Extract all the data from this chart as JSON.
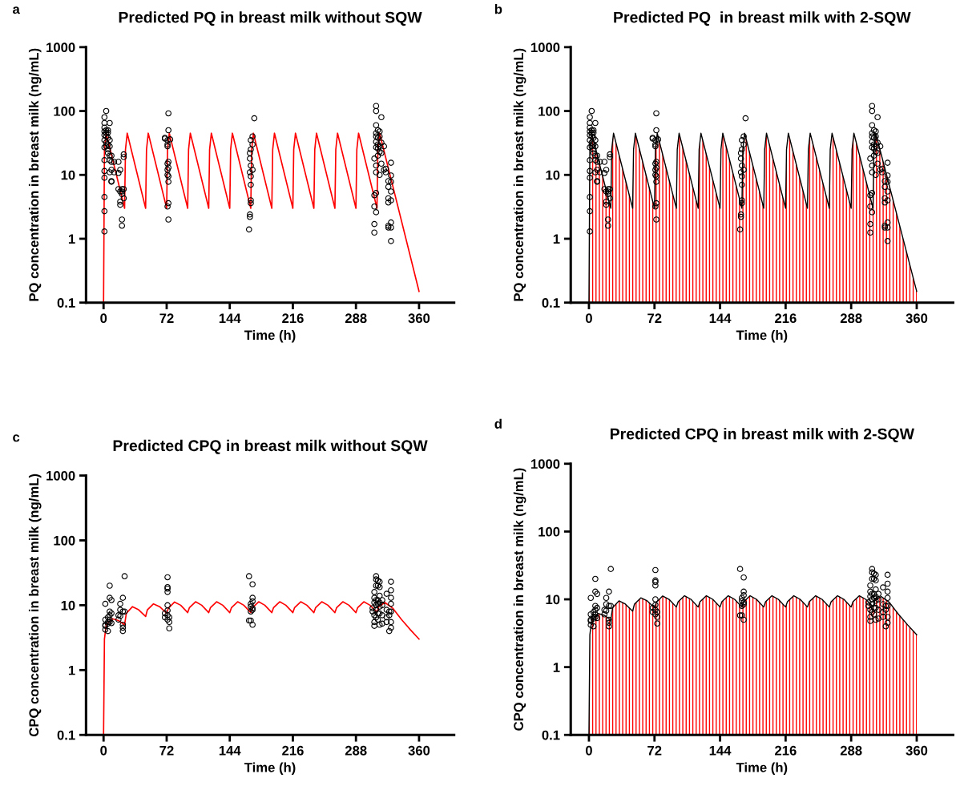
{
  "chart_data": [
    {
      "type": "line",
      "title": "Predicted PQ in breast milk without SQW",
      "annotations": [
        "a"
      ],
      "xlabel": "Time (h)",
      "ylabel": "PQ concentration in breast milk (ng/mL)",
      "log": "y",
      "xlim": [
        -20,
        400
      ],
      "xticks": [
        0,
        72,
        144,
        216,
        288,
        360
      ],
      "ylim": [
        0.1,
        1000
      ],
      "yticks": [
        0.1,
        1,
        10,
        100,
        1000
      ],
      "grid": false,
      "series": [
        {
          "type": "scatter",
          "marker": "circle",
          "color": "#000000",
          "x": [
            1,
            1,
            1,
            1,
            1,
            1,
            1,
            1,
            1,
            1,
            1,
            1,
            1,
            3,
            3,
            3,
            3,
            3,
            3,
            5,
            5,
            5,
            5,
            5,
            5,
            7,
            7,
            7,
            7,
            7,
            7,
            9,
            9,
            9,
            9,
            9,
            12,
            12,
            17,
            17,
            17,
            19,
            19,
            19,
            19,
            21,
            21,
            21,
            21,
            21,
            23,
            23,
            23,
            23,
            70,
            70,
            73,
            73,
            73,
            73,
            73,
            73,
            73,
            74,
            74,
            74,
            74,
            74,
            74,
            74,
            74,
            76,
            166,
            167,
            167,
            167,
            167,
            167,
            168,
            168,
            168,
            168,
            168,
            168,
            168,
            170,
            170,
            170,
            172,
            309,
            309,
            309,
            309,
            309,
            311,
            311,
            311,
            311,
            311,
            311,
            311,
            311,
            311,
            311,
            311,
            313,
            313,
            313,
            313,
            313,
            315,
            315,
            315,
            315,
            315,
            317,
            317,
            317,
            317,
            320,
            320,
            322,
            322,
            325,
            325,
            325,
            325,
            325,
            325,
            328,
            328,
            328,
            328,
            328,
            328,
            328,
            328
          ],
          "values": [
            1.3,
            2.7,
            4.5,
            9,
            11.5,
            17,
            27,
            35,
            42,
            48,
            55,
            65,
            80,
            100,
            50,
            45,
            40,
            32,
            28,
            50,
            46,
            38,
            30,
            25,
            22,
            65,
            35,
            28,
            20,
            17,
            11,
            20,
            16,
            12,
            8,
            7.8,
            16,
            11,
            16,
            10.7,
            6,
            5.5,
            3.8,
            3.4,
            12,
            6,
            5.5,
            5,
            2,
            1.6,
            21,
            19,
            6,
            4.3,
            37,
            38,
            3.2,
            10,
            12,
            15,
            35,
            30,
            28,
            92,
            50,
            16,
            13,
            9.5,
            7.8,
            3.6,
            2,
            36,
            1.4,
            11,
            18,
            22,
            2.2,
            2.4,
            25,
            14,
            9.5,
            7,
            4,
            3.6,
            35,
            40,
            12,
            30,
            77,
            18,
            4.8,
            3.2,
            1.7,
            1.25,
            120,
            100,
            60,
            45,
            40,
            33,
            27,
            14,
            11,
            5.2,
            2.6,
            50,
            38,
            30,
            26,
            20,
            48,
            40,
            28,
            23,
            10,
            80,
            32,
            22,
            15,
            12,
            28,
            12.5,
            11,
            8,
            6.5,
            3.7,
            4.3,
            1.6,
            1.5,
            15.5,
            9.8,
            7.8,
            5.5,
            4,
            1.8,
            0.92,
            1.5
          ]
        },
        {
          "color": "#ff0000",
          "x": [
            0,
            1,
            3,
            24,
            25,
            27,
            48,
            49,
            51,
            72,
            73,
            75,
            96,
            97,
            99,
            120,
            121,
            123,
            144,
            145,
            147,
            168,
            169,
            171,
            192,
            193,
            195,
            216,
            217,
            219,
            240,
            241,
            243,
            264,
            265,
            267,
            288,
            289,
            291,
            312,
            313,
            315,
            360
          ],
          "values": [
            0.1,
            25,
            45,
            3,
            25,
            45,
            3,
            25,
            45,
            3,
            25,
            45,
            3,
            25,
            45,
            3,
            25,
            45,
            3,
            25,
            45,
            3,
            25,
            45,
            3,
            25,
            45,
            3,
            25,
            45,
            3,
            25,
            45,
            3,
            25,
            45,
            3,
            25,
            45,
            3,
            25,
            45,
            0.15
          ]
        }
      ]
    },
    {
      "type": "area",
      "title": "Predicted PQ  in breast milk with 2-SQW",
      "annotations": [
        "b"
      ],
      "xlabel": "Time (h)",
      "ylabel": "PQ concentration in breast milk (ng/mL)",
      "log": "y",
      "xlim": [
        -20,
        400
      ],
      "xticks": [
        0,
        72,
        144,
        216,
        288,
        360
      ],
      "ylim": [
        0.1,
        1000
      ],
      "yticks": [
        0.1,
        1,
        10,
        100,
        1000
      ],
      "grid": false,
      "series": [
        {
          "color": "#ff0000",
          "x": [
            0,
            1,
            3,
            24,
            25,
            27,
            48,
            49,
            51,
            72,
            73,
            75,
            96,
            97,
            99,
            120,
            121,
            123,
            144,
            145,
            147,
            168,
            169,
            171,
            192,
            193,
            195,
            216,
            217,
            219,
            240,
            241,
            243,
            264,
            265,
            267,
            288,
            289,
            291,
            312,
            313,
            315,
            360
          ],
          "values": [
            0.1,
            25,
            45,
            3,
            25,
            45,
            3,
            25,
            45,
            3,
            25,
            45,
            3,
            25,
            45,
            3,
            25,
            45,
            3,
            25,
            45,
            3,
            25,
            45,
            3,
            25,
            45,
            3,
            25,
            45,
            3,
            25,
            45,
            3,
            25,
            45,
            3,
            25,
            45,
            3,
            25,
            45,
            0.15
          ]
        },
        {
          "type": "scatter",
          "marker": "circle",
          "color": "#000000",
          "x": [
            1,
            1,
            1,
            1,
            1,
            1,
            1,
            1,
            1,
            1,
            1,
            1,
            1,
            3,
            3,
            3,
            3,
            3,
            3,
            5,
            5,
            5,
            5,
            5,
            5,
            7,
            7,
            7,
            7,
            7,
            7,
            9,
            9,
            9,
            9,
            9,
            12,
            12,
            17,
            17,
            17,
            19,
            19,
            19,
            19,
            21,
            21,
            21,
            21,
            21,
            23,
            23,
            23,
            23,
            70,
            70,
            73,
            73,
            73,
            73,
            73,
            73,
            73,
            74,
            74,
            74,
            74,
            74,
            74,
            74,
            74,
            76,
            166,
            167,
            167,
            167,
            167,
            167,
            168,
            168,
            168,
            168,
            168,
            168,
            168,
            170,
            170,
            170,
            172,
            309,
            309,
            309,
            309,
            309,
            311,
            311,
            311,
            311,
            311,
            311,
            311,
            311,
            311,
            311,
            311,
            313,
            313,
            313,
            313,
            313,
            315,
            315,
            315,
            315,
            315,
            317,
            317,
            317,
            317,
            320,
            320,
            322,
            322,
            325,
            325,
            325,
            325,
            325,
            325,
            328,
            328,
            328,
            328,
            328,
            328,
            328,
            328
          ],
          "values": [
            1.3,
            2.7,
            4.5,
            9,
            11.5,
            17,
            27,
            35,
            42,
            48,
            55,
            65,
            80,
            100,
            50,
            45,
            40,
            32,
            28,
            50,
            46,
            38,
            30,
            25,
            22,
            65,
            35,
            28,
            20,
            17,
            11,
            20,
            16,
            12,
            8,
            7.8,
            16,
            11,
            16,
            10.7,
            6,
            5.5,
            3.8,
            3.4,
            12,
            6,
            5.5,
            5,
            2,
            1.6,
            21,
            19,
            6,
            4.3,
            37,
            38,
            3.2,
            10,
            12,
            15,
            35,
            30,
            28,
            92,
            50,
            16,
            13,
            9.5,
            7.8,
            3.6,
            2,
            36,
            1.4,
            11,
            18,
            22,
            2.2,
            2.4,
            25,
            14,
            9.5,
            7,
            4,
            3.6,
            35,
            40,
            12,
            30,
            77,
            18,
            4.8,
            3.2,
            1.7,
            1.25,
            120,
            100,
            60,
            45,
            40,
            33,
            27,
            14,
            11,
            5.2,
            2.6,
            50,
            38,
            30,
            26,
            20,
            48,
            40,
            28,
            23,
            10,
            80,
            32,
            22,
            15,
            12,
            28,
            12.5,
            11,
            8,
            6.5,
            3.7,
            4.3,
            1.6,
            1.5,
            15.5,
            9.8,
            7.8,
            5.5,
            4,
            1.8,
            0.92,
            1.5
          ]
        }
      ]
    },
    {
      "type": "line",
      "title": "Predicted CPQ in breast milk without SQW",
      "annotations": [
        "c"
      ],
      "xlabel": "Time (h)",
      "ylabel": "CPQ concentration in breast milk (ng/mL)",
      "log": "y",
      "xlim": [
        -20,
        400
      ],
      "xticks": [
        0,
        72,
        144,
        216,
        288,
        360
      ],
      "ylim": [
        0.1,
        1000
      ],
      "yticks": [
        0.1,
        1,
        10,
        100,
        1000
      ],
      "grid": false,
      "series": [
        {
          "type": "scatter",
          "marker": "circle",
          "color": "#000000",
          "x": [
            2,
            2,
            2,
            2,
            2,
            5,
            5,
            5,
            5,
            7,
            7,
            7,
            7,
            7,
            7,
            9,
            9,
            9,
            17,
            17,
            19,
            19,
            19,
            22,
            22,
            22,
            22,
            22,
            24,
            24,
            70,
            70,
            73,
            73,
            73,
            73,
            73,
            73,
            73,
            73,
            75,
            75,
            75,
            166,
            166,
            168,
            168,
            168,
            168,
            170,
            170,
            170,
            170,
            170,
            170,
            307,
            307,
            309,
            309,
            309,
            309,
            309,
            309,
            311,
            311,
            311,
            311,
            311,
            311,
            311,
            313,
            313,
            313,
            313,
            313,
            313,
            315,
            315,
            315,
            315,
            315,
            315,
            315,
            318,
            318,
            318,
            318,
            323,
            323,
            323,
            323,
            326,
            326,
            326,
            328,
            328,
            328,
            328,
            328,
            328,
            328
          ],
          "values": [
            10.5,
            6,
            5,
            4.8,
            4.2,
            6.5,
            5.5,
            4,
            5.2,
            20,
            13,
            8,
            7,
            6,
            5.5,
            12,
            7.5,
            5.3,
            7,
            6,
            10.5,
            8.5,
            6.8,
            13,
            8,
            5,
            4.5,
            4,
            28,
            8,
            7.5,
            6.5,
            27,
            19,
            18,
            16,
            10,
            8.3,
            7,
            6,
            6.5,
            5.5,
            4.4,
            5.8,
            28,
            9.5,
            10.5,
            8,
            5.8,
            21,
            13,
            11.5,
            9,
            5,
            8.5,
            8,
            9,
            16,
            13,
            11,
            7,
            5.5,
            4.8,
            28,
            25,
            20,
            12,
            10,
            8.5,
            6.5,
            24,
            20,
            12,
            10.5,
            7.5,
            6,
            23,
            19,
            14,
            11,
            9.5,
            7.5,
            5,
            12,
            10,
            7,
            5.2,
            15,
            8.5,
            6.5,
            5.5,
            8,
            7,
            4,
            23,
            17,
            13,
            10.5,
            8,
            5.5,
            4.5
          ]
        },
        {
          "color": "#ff0000",
          "x": [
            0,
            1,
            3,
            10,
            17,
            24,
            26,
            33,
            40,
            48,
            50,
            57,
            64,
            72,
            74,
            81,
            88,
            96,
            98,
            105,
            112,
            120,
            122,
            129,
            136,
            144,
            146,
            153,
            160,
            168,
            170,
            177,
            184,
            192,
            194,
            201,
            208,
            216,
            218,
            225,
            232,
            240,
            242,
            249,
            256,
            264,
            266,
            273,
            280,
            288,
            290,
            297,
            304,
            312,
            314,
            321,
            330,
            340,
            350,
            360
          ],
          "values": [
            0.1,
            3,
            5,
            6.2,
            5.8,
            5,
            7.5,
            9.5,
            8.5,
            6.7,
            8.5,
            10.5,
            9.5,
            7.5,
            9,
            11.2,
            10,
            7.7,
            9.2,
            11.3,
            10,
            7.7,
            9.2,
            11.3,
            10,
            7.7,
            9.2,
            11.3,
            10,
            7.7,
            9.2,
            11.3,
            10,
            7.7,
            9.2,
            11.3,
            10,
            7.7,
            9.2,
            11.3,
            10,
            7.7,
            9.2,
            11.3,
            10,
            7.7,
            9.2,
            11.3,
            10,
            7.7,
            9.2,
            11.3,
            10,
            7.8,
            9.5,
            11,
            9,
            6,
            4.2,
            3
          ]
        }
      ]
    },
    {
      "type": "area",
      "title": "Predicted CPQ in breast milk with 2-SQW",
      "annotations": [
        "d"
      ],
      "xlabel": "Time (h)",
      "ylabel": "CPQ concentration in breast milk (ng/mL)",
      "log": "y",
      "xlim": [
        -20,
        400
      ],
      "xticks": [
        0,
        72,
        144,
        216,
        288,
        360
      ],
      "ylim": [
        0.1,
        1000
      ],
      "yticks": [
        0.1,
        1,
        10,
        100,
        1000
      ],
      "grid": false,
      "series": [
        {
          "color": "#ff0000",
          "x": [
            0,
            1,
            3,
            10,
            17,
            24,
            26,
            33,
            40,
            48,
            50,
            57,
            64,
            72,
            74,
            81,
            88,
            96,
            98,
            105,
            112,
            120,
            122,
            129,
            136,
            144,
            146,
            153,
            160,
            168,
            170,
            177,
            184,
            192,
            194,
            201,
            208,
            216,
            218,
            225,
            232,
            240,
            242,
            249,
            256,
            264,
            266,
            273,
            280,
            288,
            290,
            297,
            304,
            312,
            314,
            321,
            330,
            340,
            350,
            360
          ],
          "values": [
            0.1,
            3,
            5,
            6.2,
            5.8,
            5,
            7.5,
            9.5,
            8.5,
            6.7,
            8.5,
            10.5,
            9.5,
            7.5,
            9,
            11.2,
            10,
            7.7,
            9.2,
            11.3,
            10,
            7.7,
            9.2,
            11.3,
            10,
            7.7,
            9.2,
            11.3,
            10,
            7.7,
            9.2,
            11.3,
            10,
            7.7,
            9.2,
            11.3,
            10,
            7.7,
            9.2,
            11.3,
            10,
            7.7,
            9.2,
            11.3,
            10,
            7.7,
            9.2,
            11.3,
            10,
            7.7,
            9.2,
            11.3,
            10,
            7.8,
            9.5,
            11,
            9,
            6,
            4.2,
            3
          ]
        },
        {
          "type": "scatter",
          "marker": "circle",
          "color": "#000000",
          "x": [
            2,
            2,
            2,
            2,
            2,
            5,
            5,
            5,
            5,
            7,
            7,
            7,
            7,
            7,
            7,
            9,
            9,
            9,
            17,
            17,
            19,
            19,
            19,
            22,
            22,
            22,
            22,
            22,
            24,
            24,
            70,
            70,
            73,
            73,
            73,
            73,
            73,
            73,
            73,
            73,
            75,
            75,
            75,
            166,
            166,
            168,
            168,
            168,
            168,
            170,
            170,
            170,
            170,
            170,
            170,
            307,
            307,
            309,
            309,
            309,
            309,
            309,
            309,
            311,
            311,
            311,
            311,
            311,
            311,
            311,
            313,
            313,
            313,
            313,
            313,
            313,
            315,
            315,
            315,
            315,
            315,
            315,
            315,
            318,
            318,
            318,
            318,
            323,
            323,
            323,
            323,
            326,
            326,
            326,
            328,
            328,
            328,
            328,
            328,
            328,
            328
          ],
          "values": [
            10.5,
            6,
            5,
            4.8,
            4.2,
            6.5,
            5.5,
            4,
            5.2,
            20,
            13,
            8,
            7,
            6,
            5.5,
            12,
            7.5,
            5.3,
            7,
            6,
            10.5,
            8.5,
            6.8,
            13,
            8,
            5,
            4.5,
            4,
            28,
            8,
            7.5,
            6.5,
            27,
            19,
            18,
            16,
            10,
            8.3,
            7,
            6,
            6.5,
            5.5,
            4.4,
            5.8,
            28,
            9.5,
            10.5,
            8,
            5.8,
            21,
            13,
            11.5,
            9,
            5,
            8.5,
            8,
            9,
            16,
            13,
            11,
            7,
            5.5,
            4.8,
            28,
            25,
            20,
            12,
            10,
            8.5,
            6.5,
            24,
            20,
            12,
            10.5,
            7.5,
            6,
            23,
            19,
            14,
            11,
            9.5,
            7.5,
            5,
            12,
            10,
            7,
            5.2,
            15,
            8.5,
            6.5,
            5.5,
            8,
            7,
            4,
            23,
            17,
            13,
            10.5,
            8,
            5.5,
            4.5
          ]
        }
      ]
    }
  ]
}
